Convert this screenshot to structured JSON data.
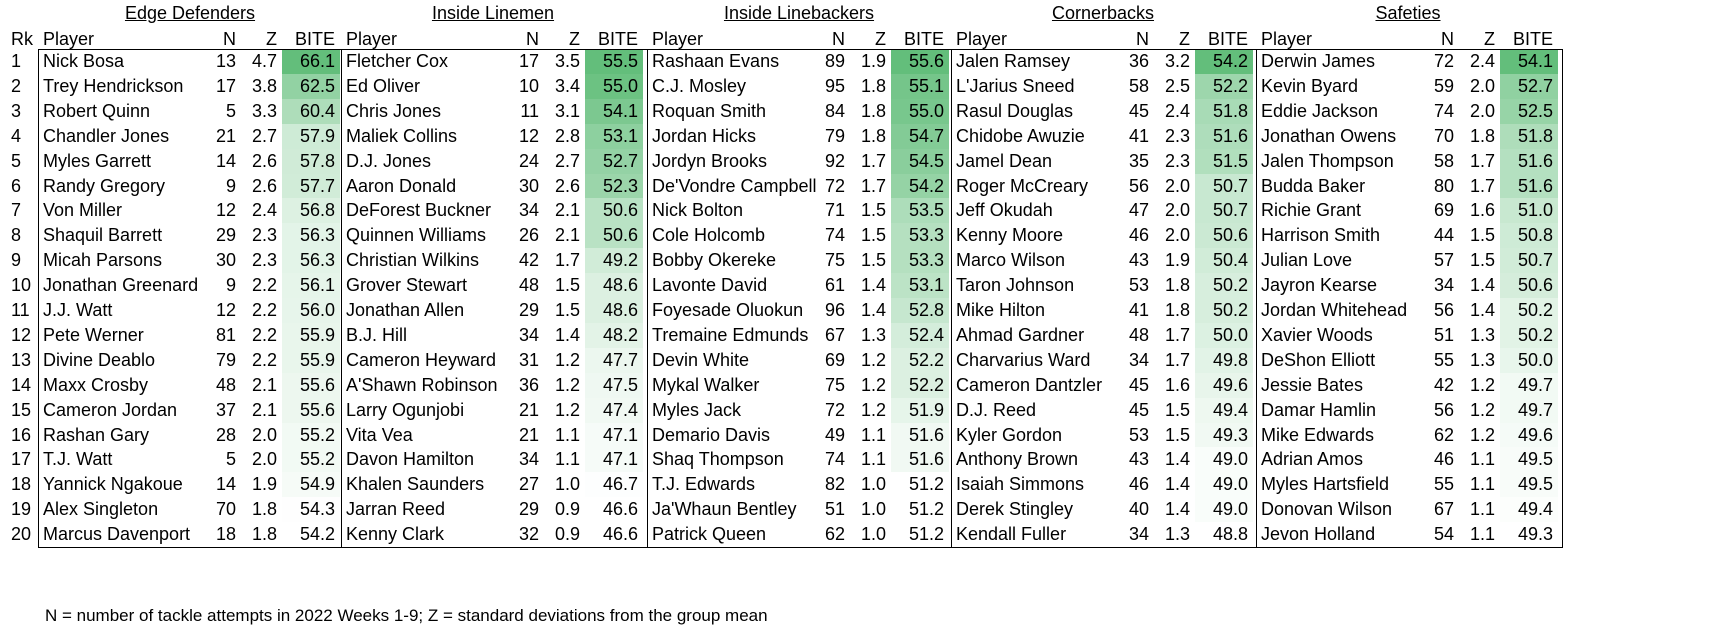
{
  "chart_data": {
    "type": "table",
    "rank_header": "Rk",
    "column_headers": [
      "Player",
      "N",
      "Z",
      "BITE"
    ],
    "groups": [
      {
        "title": "Edge Defenders",
        "rows": [
          [
            "Nick Bosa",
            13,
            "4.7",
            "66.1"
          ],
          [
            "Trey Hendrickson",
            17,
            "3.8",
            "62.5"
          ],
          [
            "Robert Quinn",
            5,
            "3.3",
            "60.4"
          ],
          [
            "Chandler Jones",
            21,
            "2.7",
            "57.9"
          ],
          [
            "Myles Garrett",
            14,
            "2.6",
            "57.8"
          ],
          [
            "Randy Gregory",
            9,
            "2.6",
            "57.7"
          ],
          [
            "Von Miller",
            12,
            "2.4",
            "56.8"
          ],
          [
            "Shaquil Barrett",
            29,
            "2.3",
            "56.3"
          ],
          [
            "Micah Parsons",
            30,
            "2.3",
            "56.3"
          ],
          [
            "Jonathan Greenard",
            9,
            "2.2",
            "56.1"
          ],
          [
            "J.J. Watt",
            12,
            "2.2",
            "56.0"
          ],
          [
            "Pete Werner",
            81,
            "2.2",
            "55.9"
          ],
          [
            "Divine Deablo",
            79,
            "2.2",
            "55.9"
          ],
          [
            "Maxx Crosby",
            48,
            "2.1",
            "55.6"
          ],
          [
            "Cameron Jordan",
            37,
            "2.1",
            "55.6"
          ],
          [
            "Rashan Gary",
            28,
            "2.0",
            "55.2"
          ],
          [
            "T.J. Watt",
            5,
            "2.0",
            "55.2"
          ],
          [
            "Yannick Ngakoue",
            14,
            "1.9",
            "54.9"
          ],
          [
            "Alex Singleton",
            70,
            "1.8",
            "54.3"
          ],
          [
            "Marcus Davenport",
            18,
            "1.8",
            "54.2"
          ]
        ]
      },
      {
        "title": "Inside Linemen",
        "rows": [
          [
            "Fletcher Cox",
            17,
            "3.5",
            "55.5"
          ],
          [
            "Ed Oliver",
            10,
            "3.4",
            "55.0"
          ],
          [
            "Chris Jones",
            11,
            "3.1",
            "54.1"
          ],
          [
            "Maliek Collins",
            12,
            "2.8",
            "53.1"
          ],
          [
            "D.J. Jones",
            24,
            "2.7",
            "52.7"
          ],
          [
            "Aaron Donald",
            30,
            "2.6",
            "52.3"
          ],
          [
            "DeForest Buckner",
            34,
            "2.1",
            "50.6"
          ],
          [
            "Quinnen Williams",
            26,
            "2.1",
            "50.6"
          ],
          [
            "Christian Wilkins",
            42,
            "1.7",
            "49.2"
          ],
          [
            "Grover Stewart",
            48,
            "1.5",
            "48.6"
          ],
          [
            "Jonathan Allen",
            29,
            "1.5",
            "48.6"
          ],
          [
            "B.J. Hill",
            34,
            "1.4",
            "48.2"
          ],
          [
            "Cameron Heyward",
            31,
            "1.2",
            "47.7"
          ],
          [
            "A'Shawn Robinson",
            36,
            "1.2",
            "47.5"
          ],
          [
            "Larry Ogunjobi",
            21,
            "1.2",
            "47.4"
          ],
          [
            "Vita Vea",
            21,
            "1.1",
            "47.1"
          ],
          [
            "Davon Hamilton",
            34,
            "1.1",
            "47.1"
          ],
          [
            "Khalen Saunders",
            27,
            "1.0",
            "46.7"
          ],
          [
            "Jarran Reed",
            29,
            "0.9",
            "46.6"
          ],
          [
            "Kenny Clark",
            32,
            "0.9",
            "46.6"
          ]
        ]
      },
      {
        "title": "Inside Linebackers",
        "rows": [
          [
            "Rashaan Evans",
            89,
            "1.9",
            "55.6"
          ],
          [
            "C.J. Mosley",
            95,
            "1.8",
            "55.1"
          ],
          [
            "Roquan Smith",
            84,
            "1.8",
            "55.0"
          ],
          [
            "Jordan Hicks",
            79,
            "1.8",
            "54.7"
          ],
          [
            "Jordyn Brooks",
            92,
            "1.7",
            "54.5"
          ],
          [
            "De'Vondre Campbell",
            72,
            "1.7",
            "54.2"
          ],
          [
            "Nick Bolton",
            71,
            "1.5",
            "53.5"
          ],
          [
            "Cole Holcomb",
            74,
            "1.5",
            "53.3"
          ],
          [
            "Bobby Okereke",
            75,
            "1.5",
            "53.3"
          ],
          [
            "Lavonte David",
            61,
            "1.4",
            "53.1"
          ],
          [
            "Foyesade Oluokun",
            96,
            "1.4",
            "52.8"
          ],
          [
            "Tremaine Edmunds",
            67,
            "1.3",
            "52.4"
          ],
          [
            "Devin White",
            69,
            "1.2",
            "52.2"
          ],
          [
            "Mykal Walker",
            75,
            "1.2",
            "52.2"
          ],
          [
            "Myles Jack",
            72,
            "1.2",
            "51.9"
          ],
          [
            "Demario Davis",
            49,
            "1.1",
            "51.6"
          ],
          [
            "Shaq Thompson",
            74,
            "1.1",
            "51.6"
          ],
          [
            "T.J. Edwards",
            82,
            "1.0",
            "51.2"
          ],
          [
            "Ja'Whaun Bentley",
            51,
            "1.0",
            "51.2"
          ],
          [
            "Patrick Queen",
            62,
            "1.0",
            "51.2"
          ]
        ]
      },
      {
        "title": "Cornerbacks",
        "rows": [
          [
            "Jalen Ramsey",
            36,
            "3.2",
            "54.2"
          ],
          [
            "L'Jarius Sneed",
            58,
            "2.5",
            "52.2"
          ],
          [
            "Rasul Douglas",
            45,
            "2.4",
            "51.8"
          ],
          [
            "Chidobe Awuzie",
            41,
            "2.3",
            "51.6"
          ],
          [
            "Jamel Dean",
            35,
            "2.3",
            "51.5"
          ],
          [
            "Roger McCreary",
            56,
            "2.0",
            "50.7"
          ],
          [
            "Jeff Okudah",
            47,
            "2.0",
            "50.7"
          ],
          [
            "Kenny Moore",
            46,
            "2.0",
            "50.6"
          ],
          [
            "Marco Wilson",
            43,
            "1.9",
            "50.4"
          ],
          [
            "Taron Johnson",
            53,
            "1.8",
            "50.2"
          ],
          [
            "Mike Hilton",
            41,
            "1.8",
            "50.2"
          ],
          [
            "Ahmad Gardner",
            48,
            "1.7",
            "50.0"
          ],
          [
            "Charvarius Ward",
            34,
            "1.7",
            "49.8"
          ],
          [
            "Cameron Dantzler",
            45,
            "1.6",
            "49.6"
          ],
          [
            "D.J. Reed",
            45,
            "1.5",
            "49.4"
          ],
          [
            "Kyler Gordon",
            53,
            "1.5",
            "49.3"
          ],
          [
            "Anthony Brown",
            43,
            "1.4",
            "49.0"
          ],
          [
            "Isaiah Simmons",
            46,
            "1.4",
            "49.0"
          ],
          [
            "Derek Stingley",
            40,
            "1.4",
            "49.0"
          ],
          [
            "Kendall Fuller",
            34,
            "1.3",
            "48.8"
          ]
        ]
      },
      {
        "title": "Safeties",
        "rows": [
          [
            "Derwin James",
            72,
            "2.4",
            "54.1"
          ],
          [
            "Kevin Byard",
            59,
            "2.0",
            "52.7"
          ],
          [
            "Eddie Jackson",
            74,
            "2.0",
            "52.5"
          ],
          [
            "Jonathan Owens",
            70,
            "1.8",
            "51.8"
          ],
          [
            "Jalen Thompson",
            58,
            "1.7",
            "51.6"
          ],
          [
            "Budda Baker",
            80,
            "1.7",
            "51.6"
          ],
          [
            "Richie Grant",
            69,
            "1.6",
            "51.0"
          ],
          [
            "Harrison Smith",
            44,
            "1.5",
            "50.8"
          ],
          [
            "Julian Love",
            57,
            "1.5",
            "50.7"
          ],
          [
            "Jayron Kearse",
            34,
            "1.4",
            "50.6"
          ],
          [
            "Jordan Whitehead",
            56,
            "1.4",
            "50.2"
          ],
          [
            "Xavier Woods",
            51,
            "1.3",
            "50.2"
          ],
          [
            "DeShon Elliott",
            55,
            "1.3",
            "50.0"
          ],
          [
            "Jessie Bates",
            42,
            "1.2",
            "49.7"
          ],
          [
            "Damar Hamlin",
            56,
            "1.2",
            "49.7"
          ],
          [
            "Mike Edwards",
            62,
            "1.2",
            "49.6"
          ],
          [
            "Adrian Amos",
            46,
            "1.1",
            "49.5"
          ],
          [
            "Myles Hartsfield",
            55,
            "1.1",
            "49.5"
          ],
          [
            "Donovan Wilson",
            67,
            "1.1",
            "49.4"
          ],
          [
            "Jevon Holland",
            54,
            "1.1",
            "49.3"
          ]
        ]
      }
    ],
    "footnote": "N = number of tackle attempts in 2022 Weeks 1-9;  Z = standard deviations from the group mean",
    "colors": {
      "bite_high": "#63BE7B",
      "bite_low": "#FFFFFF"
    }
  }
}
